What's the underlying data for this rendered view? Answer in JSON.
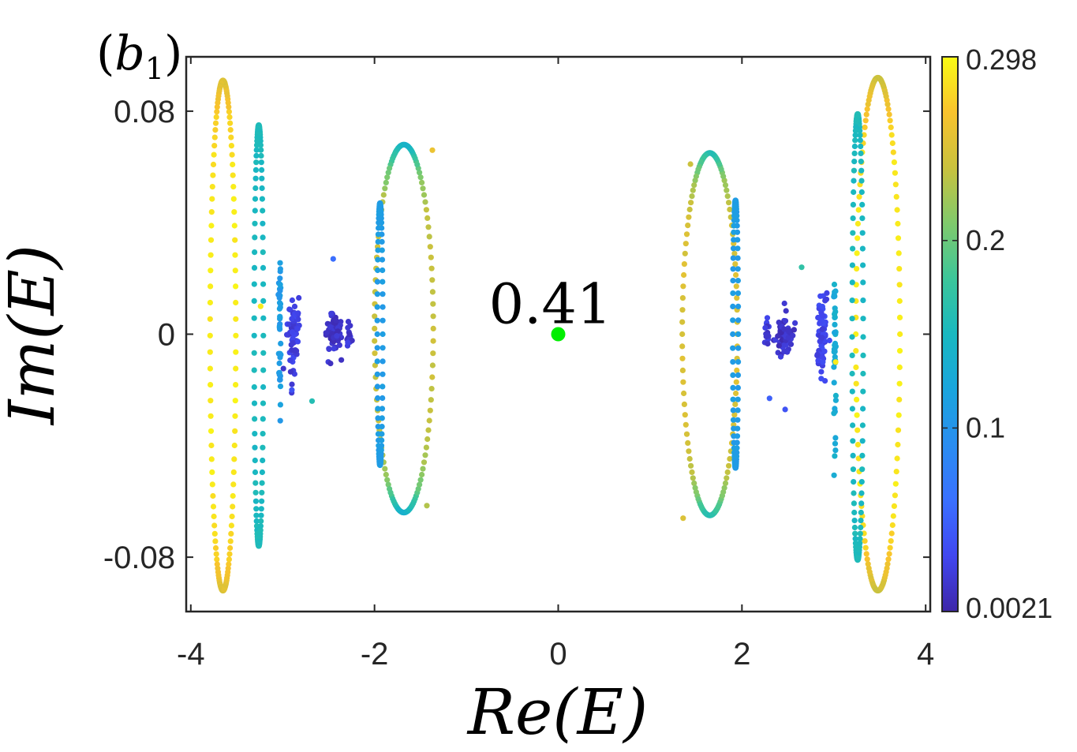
{
  "chart_data": {
    "type": "scatter",
    "panel_label": "(b",
    "panel_label_sub": "1",
    "panel_label_close": ")",
    "xlabel": "Re(E)",
    "ylabel": "Im(E)",
    "xlim": [
      -4.05,
      4.05
    ],
    "ylim": [
      -0.0995,
      0.0995
    ],
    "xticks": [
      -4,
      -2,
      0,
      2,
      4
    ],
    "xtick_labels": [
      "-4",
      "-2",
      "0",
      "2",
      "4"
    ],
    "yticks": [
      -0.08,
      0,
      0.08
    ],
    "ytick_labels": [
      "-0.08",
      "0",
      "0.08"
    ],
    "colorbar": {
      "min": 0.0021,
      "max": 0.298,
      "ticks": [
        0.0021,
        0.1,
        0.2,
        0.298
      ],
      "tick_labels": [
        "0.0021",
        "0.1",
        "0.2",
        "0.298"
      ],
      "colormap": "parula"
    },
    "highlight_point": {
      "x": 0,
      "y": 0,
      "label": "0.41",
      "color": "#00ee00"
    },
    "loops": [
      {
        "cx": -3.65,
        "cy": -0.0005,
        "rx": 0.14,
        "ry": 0.0915,
        "n": 150,
        "c_side": 0.29,
        "c_end": 0.25,
        "dense": 0.55
      },
      {
        "cx": -3.26,
        "cy": -0.0005,
        "rx": 0.05,
        "ry": 0.0755,
        "n": 110,
        "c_side": 0.15,
        "c_end": 0.155,
        "dense": 0.45
      },
      {
        "cx": -1.68,
        "cy": 0.002,
        "rx": 0.32,
        "ry": 0.066,
        "n": 140,
        "c_side": 0.24,
        "c_end": 0.14,
        "dense": 0.5
      },
      {
        "cx": -1.94,
        "cy": 0.0,
        "rx": 0.03,
        "ry": 0.047,
        "n": 90,
        "c_side": 0.11,
        "c_end": 0.11,
        "dense": 0.5
      },
      {
        "cx": 1.65,
        "cy": 0.0,
        "rx": 0.3,
        "ry": 0.065,
        "n": 140,
        "c_side": 0.25,
        "c_end": 0.16,
        "dense": 0.5
      },
      {
        "cx": 1.93,
        "cy": 0.0,
        "rx": 0.03,
        "ry": 0.048,
        "n": 90,
        "c_side": 0.11,
        "c_end": 0.11,
        "dense": 0.5
      },
      {
        "cx": 3.48,
        "cy": 0.0,
        "rx": 0.24,
        "ry": 0.092,
        "n": 150,
        "c_side": 0.29,
        "c_end": 0.24,
        "dense": 0.55
      },
      {
        "cx": 3.26,
        "cy": -0.001,
        "rx": 0.06,
        "ry": 0.08,
        "n": 110,
        "c_side": 0.15,
        "c_end": 0.155,
        "dense": 0.45
      }
    ],
    "clusters": [
      {
        "x": -2.89,
        "y": 0.0,
        "sx": 0.03,
        "sy": 0.008,
        "n": 70,
        "c": 0.025
      },
      {
        "x": -2.45,
        "y": 0.0,
        "sx": 0.05,
        "sy": 0.0035,
        "n": 70,
        "c": 0.015
      },
      {
        "x": -2.28,
        "y": 0.0,
        "sx": 0.015,
        "sy": 0.003,
        "n": 14,
        "c": 0.02
      },
      {
        "x": -3.03,
        "y": 0.0,
        "sx": 0.006,
        "sy": 0.014,
        "n": 40,
        "c": 0.11
      },
      {
        "x": 2.45,
        "y": 0.0,
        "sx": 0.05,
        "sy": 0.0035,
        "n": 70,
        "c": 0.015
      },
      {
        "x": 2.27,
        "y": 0.0,
        "sx": 0.015,
        "sy": 0.003,
        "n": 14,
        "c": 0.02
      },
      {
        "x": 2.87,
        "y": 0.0,
        "sx": 0.03,
        "sy": 0.008,
        "n": 70,
        "c": 0.03
      },
      {
        "x": 3.01,
        "y": 0.0,
        "sx": 0.006,
        "sy": 0.015,
        "n": 40,
        "c": 0.13
      }
    ],
    "extra_points": [
      {
        "x": -2.45,
        "y": 0.027,
        "c": 0.06
      },
      {
        "x": -2.9,
        "y": -0.02,
        "c": 0.04
      },
      {
        "x": -2.68,
        "y": -0.024,
        "c": 0.16
      },
      {
        "x": -3.24,
        "y": 0.01,
        "c": 0.29
      },
      {
        "x": 2.65,
        "y": 0.024,
        "c": 0.17
      },
      {
        "x": 2.3,
        "y": -0.023,
        "c": 0.05
      },
      {
        "x": 2.47,
        "y": -0.027,
        "c": 0.04
      },
      {
        "x": 3.02,
        "y": -0.01,
        "c": 0.29
      },
      {
        "x": 1.44,
        "y": 0.061,
        "c": 0.24
      },
      {
        "x": -1.43,
        "y": -0.0615,
        "c": 0.23
      },
      {
        "x": -1.37,
        "y": 0.066,
        "c": 0.26
      },
      {
        "x": 1.36,
        "y": -0.066,
        "c": 0.25
      }
    ]
  }
}
